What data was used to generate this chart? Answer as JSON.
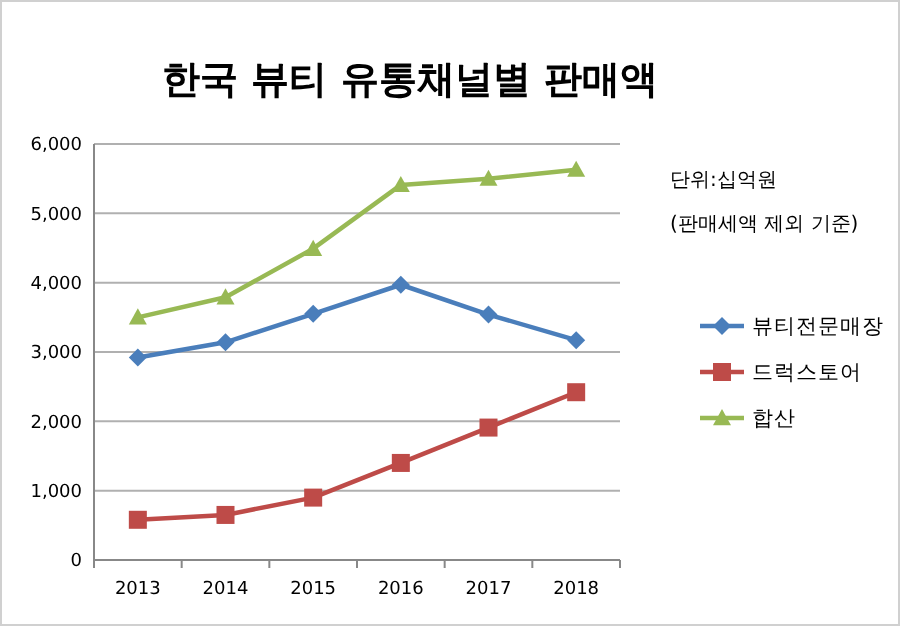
{
  "chart_data": {
    "type": "line",
    "title": "한국 뷰티 유통채널별 판매액",
    "categories": [
      "2013",
      "2014",
      "2015",
      "2016",
      "2017",
      "2018"
    ],
    "series": [
      {
        "name": "뷰티전문매장",
        "color": "#4a7ebb",
        "marker": "diamond",
        "values": [
          2920,
          3140,
          3550,
          3970,
          3540,
          3170
        ]
      },
      {
        "name": "드럭스토어",
        "color": "#be4b48",
        "marker": "square",
        "values": [
          580,
          650,
          900,
          1400,
          1910,
          2420
        ]
      },
      {
        "name": "합산",
        "color": "#98b954",
        "marker": "triangle",
        "values": [
          3500,
          3790,
          4490,
          5410,
          5500,
          5630
        ]
      }
    ],
    "ylim": [
      0,
      6000
    ],
    "yticks": [
      {
        "value": 0,
        "label": "0"
      },
      {
        "value": 1000,
        "label": "1,000"
      },
      {
        "value": 2000,
        "label": "2,000"
      },
      {
        "value": 3000,
        "label": "3,000"
      },
      {
        "value": 4000,
        "label": "4,000"
      },
      {
        "value": 5000,
        "label": "5,000"
      },
      {
        "value": 6000,
        "label": "6,000"
      }
    ],
    "grid": "y",
    "legend": "right",
    "line_style": "solid",
    "annotations": [
      "단위:십억원",
      "(판매세액 제외 기준)"
    ]
  }
}
